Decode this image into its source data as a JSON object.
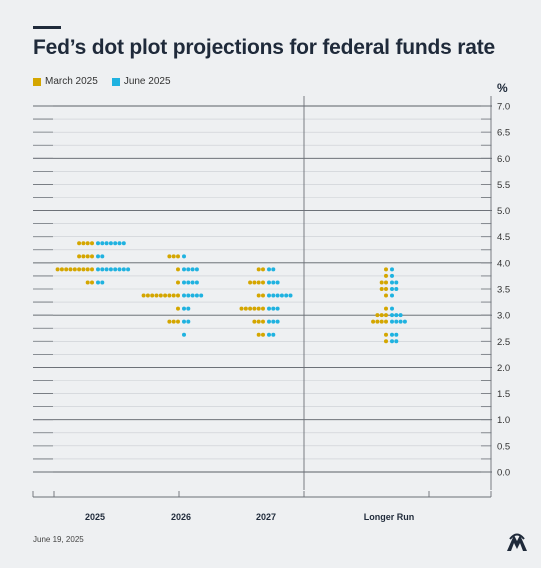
{
  "title": "Fed’s dot plot projections for federal funds rate",
  "footer": {
    "date": "June 19, 2025"
  },
  "logo": {
    "icon": "aa-agency-logo-icon"
  },
  "colors": {
    "march": "#d4a600",
    "june": "#1fb2e0",
    "grid_major": "#5a5f66",
    "grid_minor": "#c9cdd2",
    "text": "#1f2a3a"
  },
  "chart_data": {
    "type": "scatter",
    "title": "Fed’s dot plot projections for federal funds rate",
    "ylabel": "%",
    "ylim": [
      0,
      7.0
    ],
    "y_ticks": [
      "7.0",
      "6.5",
      "6.0",
      "5.5",
      "5.0",
      "4.5",
      "4.0",
      "3.5",
      "3.0",
      "2.5",
      "2.0",
      "1.5",
      "1.0",
      "0.5",
      "0.0"
    ],
    "categories": [
      "2025",
      "2026",
      "2027",
      "Longer Run"
    ],
    "legend_position": "top-left",
    "grid": true,
    "series": [
      {
        "name": "March 2025",
        "color": "#d4a600",
        "dots": [
          {
            "category": "2025",
            "y": 4.375,
            "count": 4
          },
          {
            "category": "2025",
            "y": 4.125,
            "count": 4
          },
          {
            "category": "2025",
            "y": 3.875,
            "count": 9
          },
          {
            "category": "2025",
            "y": 3.625,
            "count": 2
          },
          {
            "category": "2026",
            "y": 4.125,
            "count": 3
          },
          {
            "category": "2026",
            "y": 3.875,
            "count": 1
          },
          {
            "category": "2026",
            "y": 3.625,
            "count": 1
          },
          {
            "category": "2026",
            "y": 3.375,
            "count": 9
          },
          {
            "category": "2026",
            "y": 3.125,
            "count": 1
          },
          {
            "category": "2026",
            "y": 2.875,
            "count": 3
          },
          {
            "category": "2027",
            "y": 3.875,
            "count": 2
          },
          {
            "category": "2027",
            "y": 3.625,
            "count": 4
          },
          {
            "category": "2027",
            "y": 3.375,
            "count": 2
          },
          {
            "category": "2027",
            "y": 3.125,
            "count": 6
          },
          {
            "category": "2027",
            "y": 2.875,
            "count": 3
          },
          {
            "category": "2027",
            "y": 2.625,
            "count": 2
          },
          {
            "category": "Longer Run",
            "y": 3.875,
            "count": 1
          },
          {
            "category": "Longer Run",
            "y": 3.75,
            "count": 1
          },
          {
            "category": "Longer Run",
            "y": 3.625,
            "count": 2
          },
          {
            "category": "Longer Run",
            "y": 3.5,
            "count": 2
          },
          {
            "category": "Longer Run",
            "y": 3.375,
            "count": 1
          },
          {
            "category": "Longer Run",
            "y": 3.125,
            "count": 1
          },
          {
            "category": "Longer Run",
            "y": 3.0,
            "count": 3
          },
          {
            "category": "Longer Run",
            "y": 2.875,
            "count": 4
          },
          {
            "category": "Longer Run",
            "y": 2.625,
            "count": 1
          },
          {
            "category": "Longer Run",
            "y": 2.5,
            "count": 1
          }
        ]
      },
      {
        "name": "June 2025",
        "color": "#1fb2e0",
        "dots": [
          {
            "category": "2025",
            "y": 4.375,
            "count": 7
          },
          {
            "category": "2025",
            "y": 4.125,
            "count": 2
          },
          {
            "category": "2025",
            "y": 3.875,
            "count": 8
          },
          {
            "category": "2025",
            "y": 3.625,
            "count": 2
          },
          {
            "category": "2026",
            "y": 4.125,
            "count": 1
          },
          {
            "category": "2026",
            "y": 3.875,
            "count": 4
          },
          {
            "category": "2026",
            "y": 3.625,
            "count": 4
          },
          {
            "category": "2026",
            "y": 3.375,
            "count": 5
          },
          {
            "category": "2026",
            "y": 3.125,
            "count": 2
          },
          {
            "category": "2026",
            "y": 2.875,
            "count": 2
          },
          {
            "category": "2026",
            "y": 2.625,
            "count": 1
          },
          {
            "category": "2027",
            "y": 3.875,
            "count": 2
          },
          {
            "category": "2027",
            "y": 3.625,
            "count": 3
          },
          {
            "category": "2027",
            "y": 3.375,
            "count": 6
          },
          {
            "category": "2027",
            "y": 3.125,
            "count": 3
          },
          {
            "category": "2027",
            "y": 2.875,
            "count": 3
          },
          {
            "category": "2027",
            "y": 2.625,
            "count": 2
          },
          {
            "category": "Longer Run",
            "y": 3.875,
            "count": 1
          },
          {
            "category": "Longer Run",
            "y": 3.75,
            "count": 1
          },
          {
            "category": "Longer Run",
            "y": 3.625,
            "count": 2
          },
          {
            "category": "Longer Run",
            "y": 3.5,
            "count": 2
          },
          {
            "category": "Longer Run",
            "y": 3.375,
            "count": 1
          },
          {
            "category": "Longer Run",
            "y": 3.125,
            "count": 1
          },
          {
            "category": "Longer Run",
            "y": 3.0,
            "count": 3
          },
          {
            "category": "Longer Run",
            "y": 2.875,
            "count": 4
          },
          {
            "category": "Longer Run",
            "y": 2.625,
            "count": 2
          },
          {
            "category": "Longer Run",
            "y": 2.5,
            "count": 2
          }
        ]
      }
    ]
  }
}
